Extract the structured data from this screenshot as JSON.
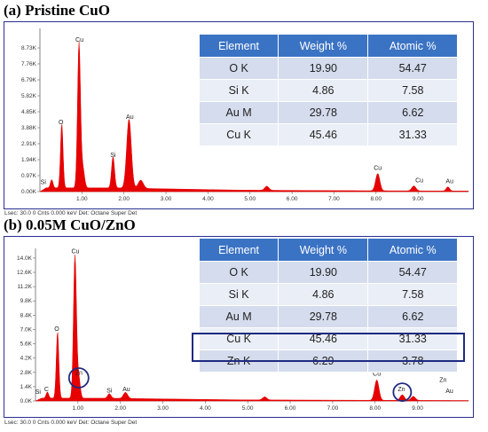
{
  "chart_data": [
    {
      "type": "line",
      "panel_label": "(a)",
      "title": "Pristine CuO",
      "xlabel": "",
      "ylabel": "",
      "xlim": [
        0,
        10.2
      ],
      "ylim": [
        0,
        9.7
      ],
      "x_ticks": [
        "1.00",
        "2.00",
        "3.00",
        "4.00",
        "5.00",
        "6.00",
        "7.00",
        "8.00",
        "9.00"
      ],
      "y_ticks": [
        {
          "value": 0,
          "label": "0.00K"
        },
        {
          "value": 0.97,
          "label": "0.97K"
        },
        {
          "value": 1.94,
          "label": "1.94K"
        },
        {
          "value": 2.91,
          "label": "2.91K"
        },
        {
          "value": 3.88,
          "label": "3.88K"
        },
        {
          "value": 4.85,
          "label": "4.85K"
        },
        {
          "value": 5.82,
          "label": "5.82K"
        },
        {
          "value": 6.79,
          "label": "6.79K"
        },
        {
          "value": 7.76,
          "label": "7.76K"
        },
        {
          "value": 8.73,
          "label": "8.73K"
        }
      ],
      "baseline": 0.2,
      "peaks": [
        {
          "x": 0.28,
          "y": 0.5,
          "w": 0.03
        },
        {
          "x": 0.52,
          "y": 3.9,
          "w": 0.03
        },
        {
          "x": 0.93,
          "y": 8.8,
          "w": 0.035
        },
        {
          "x": 1.02,
          "y": 1.2,
          "w": 0.04
        },
        {
          "x": 1.74,
          "y": 1.9,
          "w": 0.035
        },
        {
          "x": 2.12,
          "y": 4.2,
          "w": 0.055
        },
        {
          "x": 2.4,
          "y": 0.5,
          "w": 0.06
        },
        {
          "x": 9.71,
          "y": 0.25,
          "w": 0.04
        },
        {
          "x": 5.4,
          "y": 0.25,
          "w": 0.05
        },
        {
          "x": 8.04,
          "y": 1.05,
          "w": 0.05
        },
        {
          "x": 8.9,
          "y": 0.3,
          "w": 0.05
        }
      ],
      "annotations": [
        {
          "label": "Si",
          "x": 0.08,
          "y": 0.35
        },
        {
          "label": "O",
          "x": 0.5,
          "y": 4.0
        },
        {
          "label": "Cu",
          "x": 0.94,
          "y": 9.0
        },
        {
          "label": "Si",
          "x": 1.74,
          "y": 2.0
        },
        {
          "label": "Au",
          "x": 2.14,
          "y": 4.3
        },
        {
          "label": "Cu",
          "x": 8.04,
          "y": 1.2
        },
        {
          "label": "Cu",
          "x": 9.03,
          "y": 0.45
        },
        {
          "label": "Au",
          "x": 9.75,
          "y": 0.4
        }
      ],
      "footer": "Lsec: 30.0 0 Cnts  0.000 keV Det: Octane Super Det",
      "table": {
        "headers": [
          "Element",
          "Weight %",
          "Atomic %"
        ],
        "rows": [
          [
            "O K",
            "19.90",
            "54.47"
          ],
          [
            "Si K",
            "4.86",
            "7.58"
          ],
          [
            "Au M",
            "29.78",
            "6.62"
          ],
          [
            "Cu K",
            "45.46",
            "31.33"
          ]
        ]
      }
    },
    {
      "type": "line",
      "panel_label": "(b)",
      "title": "0.05M CuO/ZnO",
      "xlabel": "",
      "ylabel": "",
      "xlim": [
        0,
        10.2
      ],
      "ylim": [
        0,
        14.6
      ],
      "x_ticks": [
        "1.00",
        "2.00",
        "3.00",
        "4.00",
        "5.00",
        "6.00",
        "7.00",
        "8.00",
        "9.00"
      ],
      "y_ticks": [
        {
          "value": 0,
          "label": "0.0K"
        },
        {
          "value": 1.4,
          "label": "1.4K"
        },
        {
          "value": 2.8,
          "label": "2.8K"
        },
        {
          "value": 4.2,
          "label": "4.2K"
        },
        {
          "value": 5.6,
          "label": "5.6K"
        },
        {
          "value": 7.0,
          "label": "7.0K"
        },
        {
          "value": 8.4,
          "label": "8.4K"
        },
        {
          "value": 9.8,
          "label": "9.8K"
        },
        {
          "value": 11.2,
          "label": "11.2K"
        },
        {
          "value": 12.6,
          "label": "12.6K"
        },
        {
          "value": 14.0,
          "label": "14.0K"
        }
      ],
      "baseline": 0.25,
      "peaks": [
        {
          "x": 0.28,
          "y": 0.6,
          "w": 0.03
        },
        {
          "x": 0.52,
          "y": 6.5,
          "w": 0.03
        },
        {
          "x": 0.93,
          "y": 14.0,
          "w": 0.035
        },
        {
          "x": 1.02,
          "y": 2.0,
          "w": 0.035
        },
        {
          "x": 1.74,
          "y": 0.45,
          "w": 0.04
        },
        {
          "x": 2.12,
          "y": 0.6,
          "w": 0.05
        },
        {
          "x": 5.4,
          "y": 0.3,
          "w": 0.05
        },
        {
          "x": 8.04,
          "y": 2.0,
          "w": 0.05
        },
        {
          "x": 8.64,
          "y": 0.55,
          "w": 0.05
        },
        {
          "x": 8.9,
          "y": 0.4,
          "w": 0.05
        }
      ],
      "annotations": [
        {
          "label": "Si",
          "x": 0.06,
          "y": 0.5
        },
        {
          "label": "C",
          "x": 0.26,
          "y": 0.8
        },
        {
          "label": "O",
          "x": 0.5,
          "y": 6.7
        },
        {
          "label": "Cu",
          "x": 0.94,
          "y": 14.3
        },
        {
          "label": "Zn",
          "x": 1.02,
          "y": 2.4
        },
        {
          "label": "Si",
          "x": 1.74,
          "y": 0.65
        },
        {
          "label": "Au",
          "x": 2.14,
          "y": 0.8
        },
        {
          "label": "Cu",
          "x": 8.04,
          "y": 2.3
        },
        {
          "label": "Zn",
          "x": 8.62,
          "y": 0.8
        },
        {
          "label": "Zn",
          "x": 9.6,
          "y": 1.7
        },
        {
          "label": "Au",
          "x": 9.75,
          "y": 0.6
        }
      ],
      "footer": "Lsec: 30.0 0 Cnts  0.000 keV Det: Octane Super Det",
      "table": {
        "headers": [
          "Element",
          "Weight %",
          "Atomic %"
        ],
        "rows": [
          [
            "O K",
            "19.90",
            "54.47"
          ],
          [
            "Si K",
            "4.86",
            "7.58"
          ],
          [
            "Au M",
            "29.78",
            "6.62"
          ],
          [
            "Cu K",
            "45.46",
            "31.33"
          ],
          [
            "Zn K",
            "6.29",
            "3.78"
          ]
        ]
      },
      "circled": [
        {
          "x": 1.02,
          "y": 2.0
        },
        {
          "x": 8.64,
          "y": 0.6
        }
      ]
    }
  ],
  "colors": {
    "spectrum": "#e60000",
    "frame": "#2a2f8f",
    "table_header": "#3b73c4",
    "highlight": "#1f2a80"
  }
}
